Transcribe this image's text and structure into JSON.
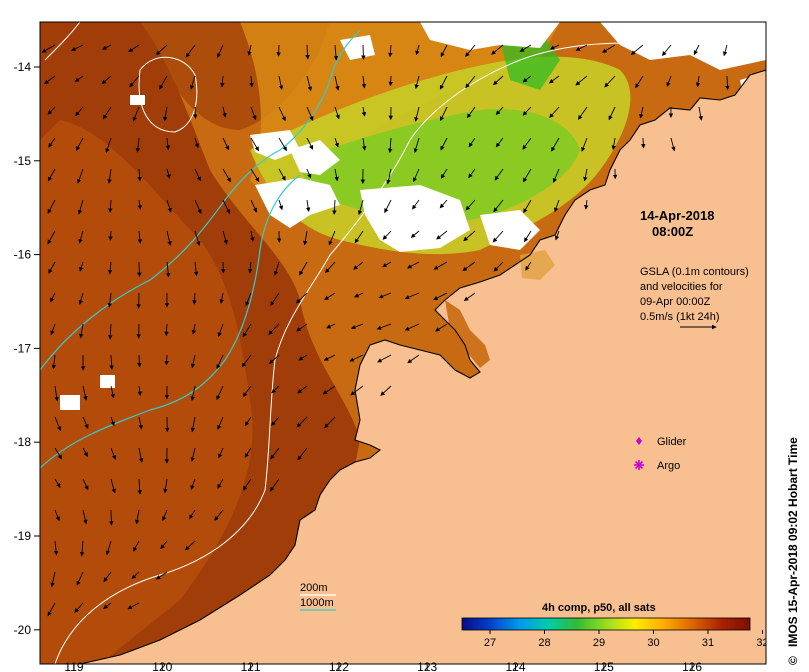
{
  "map": {
    "x_axis": {
      "ticks": [
        "119",
        "120",
        "121",
        "122",
        "123",
        "124",
        "125",
        "126"
      ]
    },
    "y_axis": {
      "ticks": [
        "-14",
        "-15",
        "-16",
        "-17",
        "-18",
        "-19",
        "-20"
      ]
    },
    "timestamp": {
      "date": "14-Apr-2018",
      "time": "08:00Z"
    },
    "annotation": {
      "lines": [
        "GSLA (0.1m contours)",
        "and velocities for",
        "09-Apr 00:00Z",
        "0.5m/s (1kt 24h)"
      ]
    },
    "symbols_legend": [
      {
        "label": "Glider",
        "color": "#cc00cc",
        "icon": "diamond-icon"
      },
      {
        "label": "Argo",
        "color": "#cc00cc",
        "icon": "star-icon"
      }
    ],
    "depth_legend": [
      {
        "label": "200m",
        "color": "#ffffff"
      },
      {
        "label": "1000m",
        "color": "#33cccc"
      }
    ],
    "colorbar": {
      "title": "4h comp, p50, all sats",
      "ticks": [
        "27",
        "28",
        "29",
        "30",
        "31",
        "32"
      ],
      "colors": [
        "#0a0a8a",
        "#0044cc",
        "#0099ee",
        "#00ccaa",
        "#33bb33",
        "#99dd22",
        "#ffee00",
        "#ffaa00",
        "#dd6600",
        "#aa2200",
        "#7a1000"
      ]
    },
    "credit": "IMOS 15-Apr-2018 09:02 Hobart Time",
    "copyright_symbol": "©",
    "colors": {
      "land": "#f8c090",
      "cloud": "#ffffff",
      "sst_warm": "#c05a10",
      "sst_hot": "#8a2a05",
      "sst_mid": "#d98a12",
      "sst_cool": "#bcd830",
      "sst_green": "#44cc22"
    }
  }
}
